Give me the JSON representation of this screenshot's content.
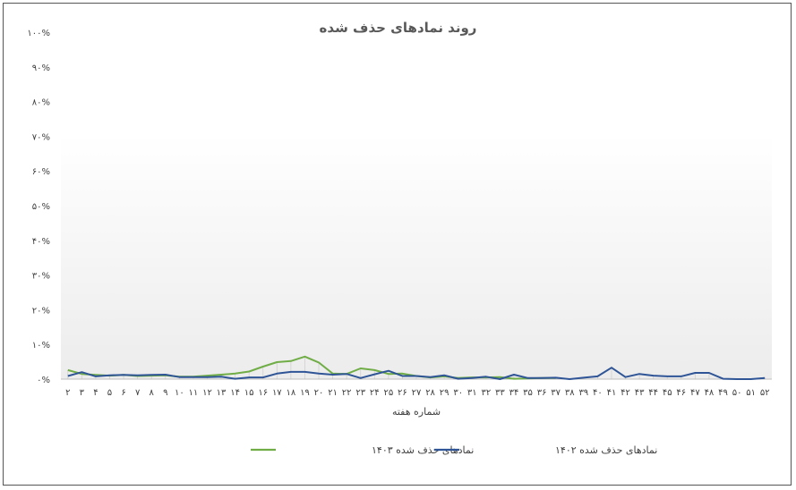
{
  "chart_data": {
    "type": "line",
    "title": "روند نمادهای حذف شده",
    "xlabel": "شماره هفته",
    "ylabel": "",
    "ylim": [
      0,
      100
    ],
    "y_ticks": [
      "۰%",
      "۱۰%",
      "۲۰%",
      "۳۰%",
      "۴۰%",
      "۵۰%",
      "۶۰%",
      "۷۰%",
      "۸۰%",
      "۹۰%",
      "۱۰۰%"
    ],
    "categories": [
      "۲",
      "۳",
      "۴",
      "۵",
      "۶",
      "۷",
      "۸",
      "۹",
      "۱۰",
      "۱۱",
      "۱۲",
      "۱۳",
      "۱۴",
      "۱۵",
      "۱۶",
      "۱۷",
      "۱۸",
      "۱۹",
      "۲۰",
      "۲۱",
      "۲۲",
      "۲۳",
      "۲۴",
      "۲۵",
      "۲۶",
      "۲۷",
      "۲۸",
      "۲۹",
      "۳۰",
      "۳۱",
      "۳۲",
      "۳۳",
      "۳۴",
      "۳۵",
      "۳۶",
      "۳۷",
      "۳۸",
      "۳۹",
      "۴۰",
      "۴۱",
      "۴۲",
      "۴۳",
      "۴۴",
      "۴۵",
      "۴۶",
      "۴۷",
      "۴۸",
      "۴۹",
      "۵۰",
      "۵۱",
      "۵۲"
    ],
    "series": [
      {
        "name": "نمادهای حذف شده ۱۴۰۳",
        "color": "#70ad47",
        "values": [
          2.6,
          1.5,
          1.2,
          1.0,
          1.2,
          0.9,
          1.0,
          1.1,
          0.7,
          0.7,
          1.0,
          1.3,
          1.6,
          2.2,
          3.6,
          4.9,
          5.2,
          6.5,
          4.8,
          1.6,
          1.5,
          3.1,
          2.6,
          1.5,
          1.6,
          0.9,
          0.5,
          0.8,
          0.3,
          0.5,
          0.5,
          0.6,
          0.1,
          0.2,
          0.3,
          0.3,
          null,
          null,
          null,
          null,
          null,
          null,
          null,
          null,
          null,
          null,
          null,
          null,
          null,
          null,
          null
        ]
      },
      {
        "name": "نمادهای حذف شده ۱۴۰۲",
        "color": "#2f5597",
        "values": [
          0.9,
          2.0,
          0.8,
          1.1,
          1.2,
          1.1,
          1.2,
          1.3,
          0.6,
          0.6,
          0.6,
          0.7,
          0.1,
          0.5,
          0.5,
          1.6,
          2.1,
          2.1,
          1.6,
          1.3,
          1.5,
          0.3,
          1.4,
          2.4,
          0.9,
          0.9,
          0.6,
          1.1,
          0.1,
          0.3,
          0.7,
          0.0,
          1.3,
          0.3,
          0.3,
          0.4,
          0.0,
          0.4,
          0.8,
          3.3,
          0.6,
          1.5,
          1.0,
          0.8,
          0.8,
          1.8,
          1.8,
          0.1,
          0.0,
          0.0,
          0.3
        ]
      }
    ],
    "grid": false,
    "legend_position": "bottom"
  }
}
